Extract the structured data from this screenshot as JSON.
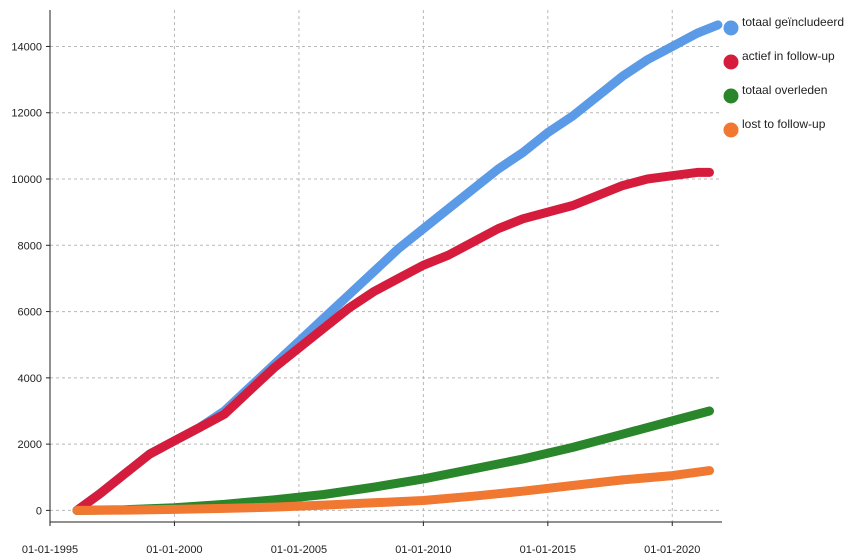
{
  "chart_data": {
    "type": "line",
    "title": "",
    "xlabel": "",
    "ylabel": "",
    "x_axis": {
      "min": "1995-01-01",
      "max": "2021-12-31",
      "ticks": [
        "1995-01-01",
        "2000-01-01",
        "2005-01-01",
        "2010-01-01",
        "2015-01-01",
        "2020-01-01"
      ],
      "tick_labels": [
        "01-01-1995",
        "01-01-2000",
        "01-01-2005",
        "01-01-2010",
        "01-01-2015",
        "01-01-2020"
      ]
    },
    "y_axis": {
      "min": -350,
      "max": 15100,
      "ticks": [
        0,
        2000,
        4000,
        6000,
        8000,
        10000,
        12000,
        14000
      ],
      "tick_labels": [
        "0",
        "2000",
        "4000",
        "6000",
        "8000",
        "10000",
        "12000",
        "14000"
      ]
    },
    "grid": true,
    "legend_position": "right",
    "series": [
      {
        "name": "totaal geïncludeerd",
        "color": "#5b9ae6",
        "points": [
          [
            "1996-02-01",
            0
          ],
          [
            "1997-01-01",
            500
          ],
          [
            "1998-01-01",
            1100
          ],
          [
            "1999-01-01",
            1700
          ],
          [
            "2000-01-01",
            2100
          ],
          [
            "2001-01-01",
            2500
          ],
          [
            "2002-01-01",
            3000
          ],
          [
            "2003-01-01",
            3700
          ],
          [
            "2004-01-01",
            4400
          ],
          [
            "2005-01-01",
            5100
          ],
          [
            "2006-01-01",
            5800
          ],
          [
            "2007-01-01",
            6500
          ],
          [
            "2008-01-01",
            7200
          ],
          [
            "2009-01-01",
            7900
          ],
          [
            "2010-01-01",
            8500
          ],
          [
            "2011-01-01",
            9100
          ],
          [
            "2012-01-01",
            9700
          ],
          [
            "2013-01-01",
            10300
          ],
          [
            "2014-01-01",
            10800
          ],
          [
            "2015-01-01",
            11400
          ],
          [
            "2016-01-01",
            11900
          ],
          [
            "2017-01-01",
            12500
          ],
          [
            "2018-01-01",
            13100
          ],
          [
            "2019-01-01",
            13600
          ],
          [
            "2020-01-01",
            14000
          ],
          [
            "2021-01-01",
            14400
          ],
          [
            "2021-11-01",
            14650
          ]
        ]
      },
      {
        "name": "actief in follow-up",
        "color": "#d61c3c",
        "points": [
          [
            "1996-02-01",
            0
          ],
          [
            "1997-01-01",
            500
          ],
          [
            "1998-01-01",
            1100
          ],
          [
            "1999-01-01",
            1700
          ],
          [
            "2000-01-01",
            2100
          ],
          [
            "2001-01-01",
            2500
          ],
          [
            "2002-01-01",
            2900
          ],
          [
            "2003-01-01",
            3600
          ],
          [
            "2004-01-01",
            4300
          ],
          [
            "2005-01-01",
            4900
          ],
          [
            "2006-01-01",
            5500
          ],
          [
            "2007-01-01",
            6100
          ],
          [
            "2008-01-01",
            6600
          ],
          [
            "2009-01-01",
            7000
          ],
          [
            "2010-01-01",
            7400
          ],
          [
            "2011-01-01",
            7700
          ],
          [
            "2012-01-01",
            8100
          ],
          [
            "2013-01-01",
            8500
          ],
          [
            "2014-01-01",
            8800
          ],
          [
            "2015-01-01",
            9000
          ],
          [
            "2016-01-01",
            9200
          ],
          [
            "2017-01-01",
            9500
          ],
          [
            "2018-01-01",
            9800
          ],
          [
            "2019-01-01",
            10000
          ],
          [
            "2020-01-01",
            10100
          ],
          [
            "2021-01-01",
            10200
          ],
          [
            "2021-07-01",
            10200
          ]
        ]
      },
      {
        "name": "totaal overleden",
        "color": "#2a862a",
        "points": [
          [
            "1996-02-01",
            0
          ],
          [
            "1998-01-01",
            20
          ],
          [
            "2000-01-01",
            80
          ],
          [
            "2002-01-01",
            180
          ],
          [
            "2004-01-01",
            320
          ],
          [
            "2006-01-01",
            480
          ],
          [
            "2008-01-01",
            700
          ],
          [
            "2010-01-01",
            950
          ],
          [
            "2012-01-01",
            1250
          ],
          [
            "2014-01-01",
            1550
          ],
          [
            "2016-01-01",
            1900
          ],
          [
            "2018-01-01",
            2300
          ],
          [
            "2020-01-01",
            2700
          ],
          [
            "2021-07-01",
            3000
          ]
        ]
      },
      {
        "name": "lost to follow-up",
        "color": "#f07830",
        "points": [
          [
            "1996-02-01",
            0
          ],
          [
            "1998-01-01",
            10
          ],
          [
            "2000-01-01",
            30
          ],
          [
            "2002-01-01",
            60
          ],
          [
            "2004-01-01",
            100
          ],
          [
            "2006-01-01",
            160
          ],
          [
            "2008-01-01",
            230
          ],
          [
            "2010-01-01",
            300
          ],
          [
            "2012-01-01",
            430
          ],
          [
            "2014-01-01",
            580
          ],
          [
            "2016-01-01",
            750
          ],
          [
            "2018-01-01",
            920
          ],
          [
            "2020-01-01",
            1050
          ],
          [
            "2021-07-01",
            1200
          ]
        ]
      }
    ]
  }
}
